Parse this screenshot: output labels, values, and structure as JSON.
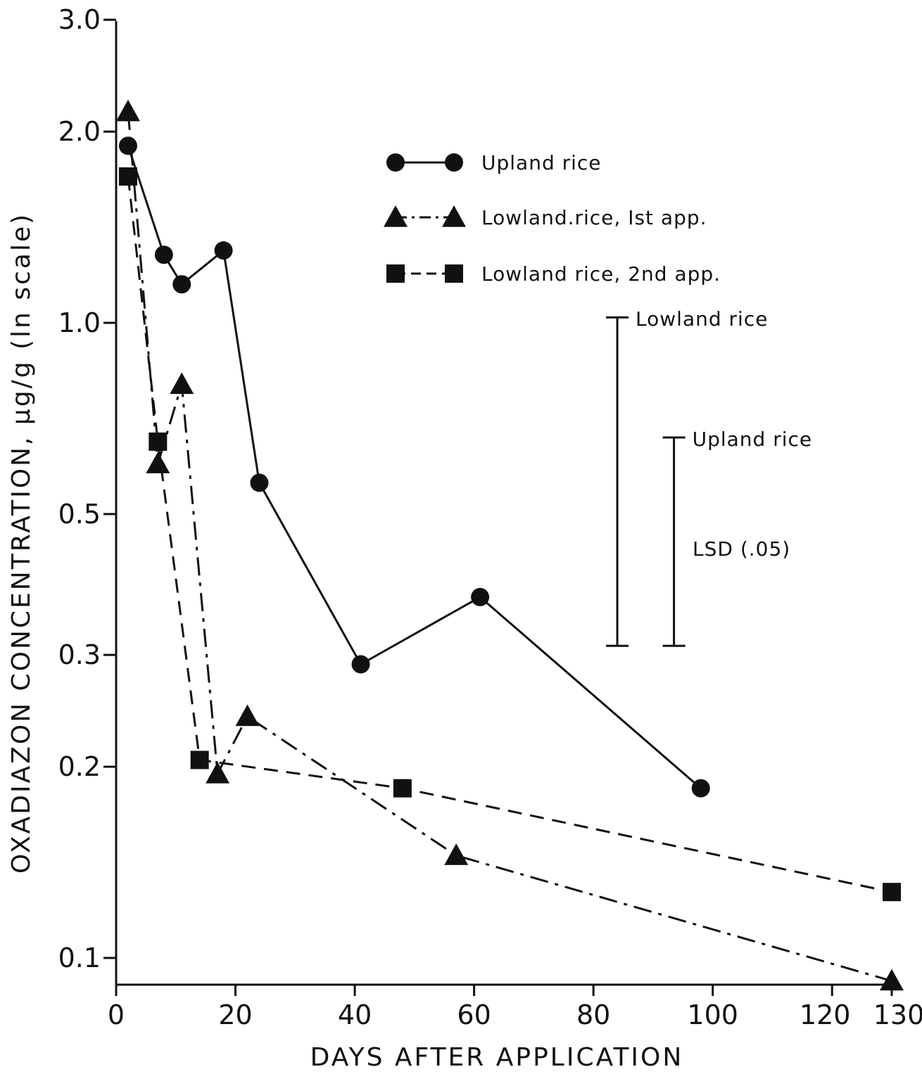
{
  "chart_data": {
    "type": "line",
    "xlabel": "DAYS AFTER APPLICATION",
    "ylabel": "OXADIAZON CONCENTRATION, µg/g (ln scale)",
    "y_scale": "log",
    "xlim": [
      0,
      130
    ],
    "ylim": [
      0.09,
      3.0
    ],
    "x_ticks": [
      {
        "value": 0,
        "label": "0"
      },
      {
        "value": 20,
        "label": "20"
      },
      {
        "value": 40,
        "label": "40"
      },
      {
        "value": 60,
        "label": "60"
      },
      {
        "value": 80,
        "label": "80"
      },
      {
        "value": 100,
        "label": "100"
      },
      {
        "value": 120,
        "label": "120"
      },
      {
        "value": 130,
        "label": "130"
      }
    ],
    "y_ticks": [
      {
        "value": 0.1,
        "label": "0.1"
      },
      {
        "value": 0.2,
        "label": "0.2"
      },
      {
        "value": 0.3,
        "label": "0.3"
      },
      {
        "value": 0.5,
        "label": "0.5"
      },
      {
        "value": 1.0,
        "label": "1.0"
      },
      {
        "value": 2.0,
        "label": "2.0"
      },
      {
        "value": 3.0,
        "label": "3.0"
      }
    ],
    "grid": false,
    "legend_position": "top-right",
    "series": [
      {
        "name": "Upland rice",
        "marker": "circle",
        "line_style": "solid",
        "x": [
          2,
          8,
          11,
          18,
          24,
          41,
          61,
          98
        ],
        "y": [
          1.9,
          1.28,
          1.15,
          1.3,
          0.56,
          0.29,
          0.37,
          0.185
        ]
      },
      {
        "name": "Lowland.rice, Ist app.",
        "marker": "triangle",
        "line_style": "dashdot",
        "x": [
          2,
          7,
          11,
          17,
          22,
          57,
          130
        ],
        "y": [
          2.15,
          0.6,
          0.8,
          0.195,
          0.24,
          0.145,
          0.092
        ]
      },
      {
        "name": "Lowland rice, 2nd app.",
        "marker": "square",
        "line_style": "dashed",
        "x": [
          2,
          7,
          14,
          48,
          130
        ],
        "y": [
          1.7,
          0.65,
          0.205,
          0.185,
          0.127
        ]
      }
    ],
    "lsd_bars": [
      {
        "label": "Lowland rice",
        "x": 84,
        "ymin": 0.31,
        "ymax": 1.02
      },
      {
        "label": "Upland rice",
        "x": 93.5,
        "ymin": 0.31,
        "ymax": 0.66
      }
    ],
    "annotation": "LSD (.05)"
  }
}
